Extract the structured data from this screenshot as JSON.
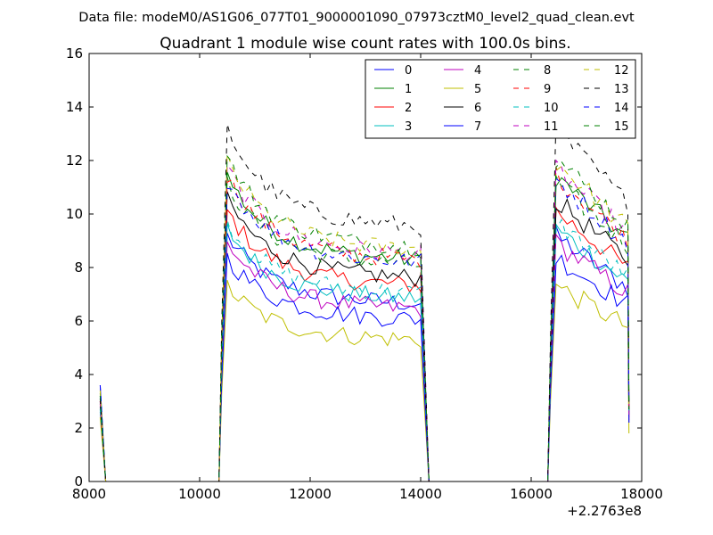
{
  "chart_data": {
    "type": "line",
    "suptitle": "Data file: modeM0/AS1G06_077T01_9000001090_07973cztM0_level2_quad_clean.evt",
    "title": "Quadrant 1 module wise count rates with 100.0s bins.",
    "xlabel": "",
    "ylabel": "",
    "x_offset_label": "+2.2763e8",
    "xlim": [
      8000,
      18000
    ],
    "ylim": [
      0,
      16
    ],
    "xticks": [
      "8000",
      "10000",
      "12000",
      "14000",
      "16000",
      "18000"
    ],
    "yticks": [
      "0",
      "2",
      "4",
      "6",
      "8",
      "10",
      "12",
      "14",
      "16"
    ],
    "grid": false,
    "legend_position": "top-right",
    "colors": [
      "#0000ff",
      "#008000",
      "#ff0000",
      "#00bfbf",
      "#bf00bf",
      "#bfbf00",
      "#000000"
    ],
    "gti": [
      [
        8250,
        8350
      ],
      [
        10400,
        14050
      ],
      [
        16350,
        17750
      ]
    ],
    "series": [
      {
        "name": "0",
        "level": 6.9,
        "start": 3.6,
        "end": 2.2
      },
      {
        "name": "1",
        "level": 8.6,
        "start": 3.3,
        "end": 2.6
      },
      {
        "name": "2",
        "level": 7.6,
        "start": 3.0,
        "end": 2.4
      },
      {
        "name": "3",
        "level": 7.1,
        "start": 2.6,
        "end": 2.8
      },
      {
        "name": "4",
        "level": 6.7,
        "start": 2.8,
        "end": 2.3
      },
      {
        "name": "5",
        "level": 5.5,
        "start": 2.4,
        "end": 1.8
      },
      {
        "name": "6",
        "level": 7.9,
        "start": 2.9,
        "end": 2.5
      },
      {
        "name": "7",
        "level": 6.3,
        "start": 3.1,
        "end": 2.2
      },
      {
        "name": "8",
        "level": 8.4,
        "start": 3.2,
        "end": 2.7
      },
      {
        "name": "9",
        "level": 8.6,
        "start": 3.0,
        "end": 2.6
      },
      {
        "name": "10",
        "level": 7.3,
        "start": 2.7,
        "end": 2.4
      },
      {
        "name": "11",
        "level": 8.8,
        "start": 3.0,
        "end": 2.5
      },
      {
        "name": "12",
        "level": 9.0,
        "start": 3.4,
        "end": 2.9
      },
      {
        "name": "13",
        "level": 9.9,
        "start": 3.1,
        "end": 2.8
      },
      {
        "name": "14",
        "level": 8.5,
        "start": 3.6,
        "end": 3.0
      },
      {
        "name": "15",
        "level": 9.1,
        "start": 3.2,
        "end": 2.7
      }
    ]
  }
}
